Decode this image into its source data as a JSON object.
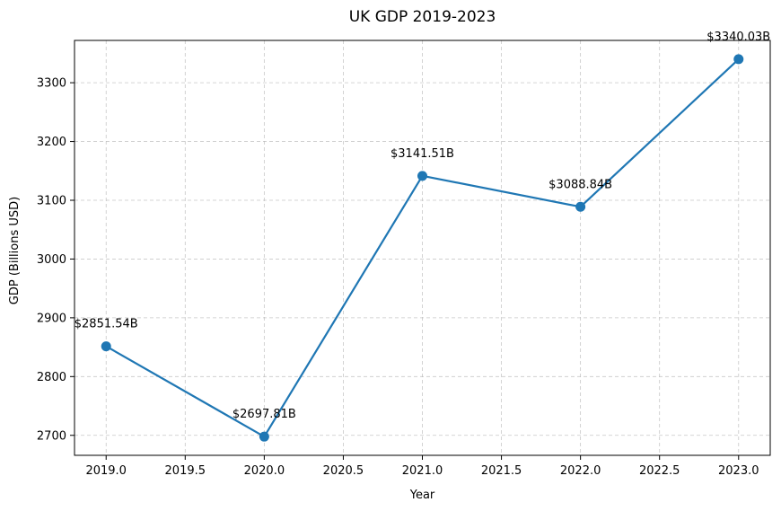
{
  "chart_data": {
    "type": "line",
    "title": "UK GDP 2019-2023",
    "xlabel": "Year",
    "ylabel": "GDP (Billions USD)",
    "xlim": [
      2018.8,
      2023.2
    ],
    "ylim": [
      2666,
      3372
    ],
    "x_ticks": [
      2019.0,
      2019.5,
      2020.0,
      2020.5,
      2021.0,
      2021.5,
      2022.0,
      2022.5,
      2023.0
    ],
    "x_tick_labels": [
      "2019.0",
      "2019.5",
      "2020.0",
      "2020.5",
      "2021.0",
      "2021.5",
      "2022.0",
      "2022.5",
      "2023.0"
    ],
    "y_ticks": [
      2700,
      2800,
      2900,
      3000,
      3100,
      3200,
      3300
    ],
    "y_tick_labels": [
      "2700",
      "2800",
      "2900",
      "3000",
      "3100",
      "3200",
      "3300"
    ],
    "grid": true,
    "grid_style": "dashed",
    "series": [
      {
        "color": "#1f77b4",
        "x": [
          2019,
          2020,
          2021,
          2022,
          2023
        ],
        "values": [
          2851.54,
          2697.81,
          3141.51,
          3088.84,
          3340.03
        ],
        "data_labels": [
          "$2851.54B",
          "$2697.81B",
          "$3141.51B",
          "$3088.84B",
          "$3340.03B"
        ]
      }
    ]
  }
}
